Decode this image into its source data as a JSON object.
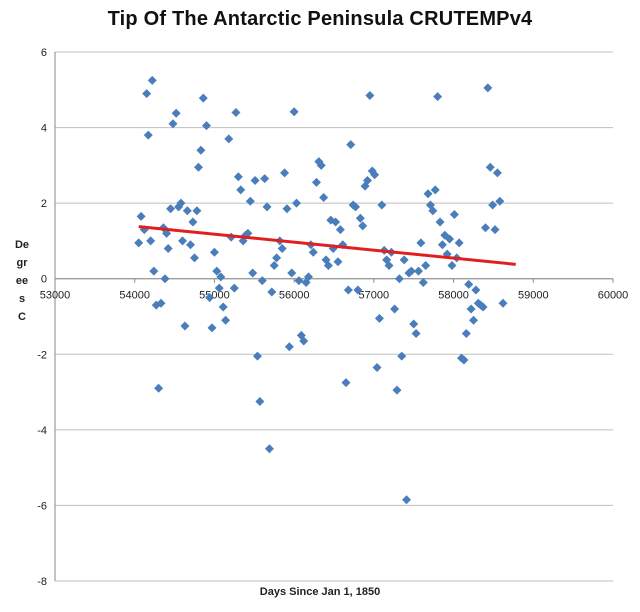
{
  "chart_data": {
    "type": "scatter",
    "title": "Tip Of The Antarctic Peninsula  CRUTEMPv4",
    "xlabel": "Days Since Jan 1, 1850",
    "ylabel": "Degrees C",
    "xlim": [
      53000,
      60000
    ],
    "ylim": [
      -8,
      6
    ],
    "xticks": [
      53000,
      54000,
      55000,
      56000,
      57000,
      58000,
      59000,
      60000
    ],
    "yticks": [
      -8,
      -6,
      -4,
      -2,
      0,
      2,
      4,
      6
    ],
    "grid": "horizontal",
    "legend": "none",
    "marker_color": "#4a7ebb",
    "trend_color": "#e02020",
    "series": [
      {
        "marker": "diamond",
        "points": [
          [
            54050,
            0.95
          ],
          [
            54080,
            1.65
          ],
          [
            54120,
            1.3
          ],
          [
            54150,
            4.9
          ],
          [
            54170,
            3.8
          ],
          [
            54200,
            1.0
          ],
          [
            54220,
            5.25
          ],
          [
            54240,
            0.2
          ],
          [
            54270,
            -0.7
          ],
          [
            54300,
            -2.9
          ],
          [
            54330,
            -0.65
          ],
          [
            54360,
            1.35
          ],
          [
            54380,
            0.0
          ],
          [
            54400,
            1.2
          ],
          [
            54420,
            0.8
          ],
          [
            54450,
            1.85
          ],
          [
            54480,
            4.1
          ],
          [
            54520,
            4.38
          ],
          [
            54550,
            1.9
          ],
          [
            54580,
            2.0
          ],
          [
            54600,
            1.0
          ],
          [
            54630,
            -1.25
          ],
          [
            54660,
            1.8
          ],
          [
            54700,
            0.9
          ],
          [
            54730,
            1.5
          ],
          [
            54750,
            0.55
          ],
          [
            54780,
            1.8
          ],
          [
            54800,
            2.95
          ],
          [
            54830,
            3.4
          ],
          [
            54860,
            4.78
          ],
          [
            54900,
            4.05
          ],
          [
            54940,
            -0.5
          ],
          [
            54970,
            -1.3
          ],
          [
            55000,
            0.7
          ],
          [
            55030,
            0.2
          ],
          [
            55060,
            -0.25
          ],
          [
            55080,
            0.05
          ],
          [
            55110,
            -0.75
          ],
          [
            55140,
            -1.1
          ],
          [
            55180,
            3.7
          ],
          [
            55210,
            1.1
          ],
          [
            55250,
            -0.25
          ],
          [
            55270,
            4.4
          ],
          [
            55300,
            2.7
          ],
          [
            55330,
            2.35
          ],
          [
            55360,
            1.0
          ],
          [
            55390,
            1.15
          ],
          [
            55420,
            1.2
          ],
          [
            55450,
            2.05
          ],
          [
            55480,
            0.15
          ],
          [
            55510,
            2.6
          ],
          [
            55540,
            -2.05
          ],
          [
            55570,
            -3.25
          ],
          [
            55600,
            -0.05
          ],
          [
            55630,
            2.65
          ],
          [
            55660,
            1.9
          ],
          [
            55690,
            -4.5
          ],
          [
            55720,
            -0.35
          ],
          [
            55750,
            0.35
          ],
          [
            55780,
            0.55
          ],
          [
            55820,
            1.0
          ],
          [
            55850,
            0.8
          ],
          [
            55880,
            2.8
          ],
          [
            55910,
            1.85
          ],
          [
            55940,
            -1.8
          ],
          [
            55970,
            0.15
          ],
          [
            56000,
            4.42
          ],
          [
            56030,
            2.0
          ],
          [
            56060,
            -0.05
          ],
          [
            56090,
            -1.5
          ],
          [
            56120,
            -1.65
          ],
          [
            56150,
            -0.1
          ],
          [
            56180,
            0.05
          ],
          [
            56210,
            0.9
          ],
          [
            56240,
            0.7
          ],
          [
            56280,
            2.55
          ],
          [
            56310,
            3.1
          ],
          [
            56340,
            3.0
          ],
          [
            56370,
            2.15
          ],
          [
            56400,
            0.5
          ],
          [
            56430,
            0.35
          ],
          [
            56460,
            1.55
          ],
          [
            56490,
            0.8
          ],
          [
            56520,
            1.5
          ],
          [
            56550,
            0.45
          ],
          [
            56580,
            1.3
          ],
          [
            56610,
            0.9
          ],
          [
            56650,
            -2.75
          ],
          [
            56680,
            -0.3
          ],
          [
            56710,
            3.55
          ],
          [
            56740,
            1.95
          ],
          [
            56770,
            1.9
          ],
          [
            56800,
            -0.3
          ],
          [
            56830,
            1.6
          ],
          [
            56860,
            1.4
          ],
          [
            56890,
            2.45
          ],
          [
            56920,
            2.6
          ],
          [
            56950,
            4.85
          ],
          [
            56980,
            2.85
          ],
          [
            57010,
            2.75
          ],
          [
            57040,
            -2.35
          ],
          [
            57070,
            -1.05
          ],
          [
            57100,
            1.95
          ],
          [
            57130,
            0.75
          ],
          [
            57160,
            0.5
          ],
          [
            57190,
            0.35
          ],
          [
            57220,
            0.7
          ],
          [
            57260,
            -0.8
          ],
          [
            57290,
            -2.95
          ],
          [
            57320,
            0.0
          ],
          [
            57350,
            -2.05
          ],
          [
            57380,
            0.5
          ],
          [
            57410,
            -5.85
          ],
          [
            57440,
            0.15
          ],
          [
            57470,
            0.2
          ],
          [
            57500,
            -1.2
          ],
          [
            57530,
            -1.45
          ],
          [
            57560,
            0.2
          ],
          [
            57590,
            0.95
          ],
          [
            57620,
            -0.1
          ],
          [
            57650,
            0.35
          ],
          [
            57680,
            2.25
          ],
          [
            57710,
            1.95
          ],
          [
            57740,
            1.8
          ],
          [
            57770,
            2.35
          ],
          [
            57800,
            4.82
          ],
          [
            57830,
            1.5
          ],
          [
            57860,
            0.9
          ],
          [
            57890,
            1.15
          ],
          [
            57920,
            0.65
          ],
          [
            57950,
            1.05
          ],
          [
            57980,
            0.35
          ],
          [
            58010,
            1.7
          ],
          [
            58040,
            0.55
          ],
          [
            58070,
            0.95
          ],
          [
            58100,
            -2.1
          ],
          [
            58130,
            -2.15
          ],
          [
            58160,
            -1.45
          ],
          [
            58190,
            -0.15
          ],
          [
            58220,
            -0.8
          ],
          [
            58250,
            -1.1
          ],
          [
            58280,
            -0.3
          ],
          [
            58310,
            -0.65
          ],
          [
            58340,
            -0.7
          ],
          [
            58370,
            -0.75
          ],
          [
            58400,
            1.35
          ],
          [
            58430,
            5.05
          ],
          [
            58460,
            2.95
          ],
          [
            58490,
            1.95
          ],
          [
            58520,
            1.3
          ],
          [
            58550,
            2.8
          ],
          [
            58580,
            2.05
          ],
          [
            58620,
            -0.65
          ]
        ]
      }
    ],
    "trendline": {
      "x": [
        54050,
        58780
      ],
      "y": [
        1.38,
        0.38
      ]
    }
  }
}
